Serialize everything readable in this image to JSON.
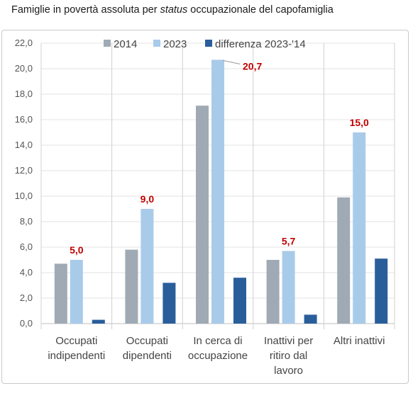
{
  "title_parts": {
    "pre": "Famiglie in povertà assoluta per ",
    "italic": "status",
    "post": " occupazionale del capofamiglia"
  },
  "colors": {
    "s2014": "#a0aab4",
    "s2023": "#a9cbea",
    "diff": "#2a5e9b",
    "label": "#c00000",
    "grid": "#e3e3e3",
    "separator": "#d0d0d0"
  },
  "chart_data": {
    "type": "bar",
    "title": "Famiglie in povertà assoluta per status occupazionale del capofamiglia",
    "categories": [
      [
        "Occupati",
        "indipendenti"
      ],
      [
        "Occupati",
        "dipendenti"
      ],
      [
        "In cerca di",
        "occupazione"
      ],
      [
        "Inattivi per",
        "ritiro dal",
        "lavoro"
      ],
      [
        "Altri inattivi"
      ]
    ],
    "series": [
      {
        "name": "2014",
        "values": [
          4.7,
          5.8,
          17.1,
          5.0,
          9.9
        ]
      },
      {
        "name": "2023",
        "values": [
          5.0,
          9.0,
          20.7,
          5.7,
          15.0
        ]
      },
      {
        "name": "differenza 2023-'14",
        "values": [
          0.3,
          3.2,
          3.6,
          0.7,
          5.1
        ]
      }
    ],
    "data_labels": [
      "5,0",
      "9,0",
      "20,7",
      "5,7",
      "15,0"
    ],
    "ylim": [
      0,
      22
    ],
    "yticks": [
      "0,0",
      "2,0",
      "4,0",
      "6,0",
      "8,0",
      "10,0",
      "12,0",
      "14,0",
      "16,0",
      "18,0",
      "20,0",
      "22,0"
    ],
    "grid": true,
    "legend": "top"
  }
}
